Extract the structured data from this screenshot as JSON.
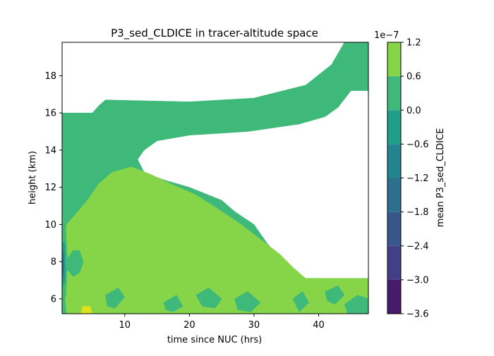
{
  "chart_data": {
    "type": "heatmap",
    "title": "P3_sed_CLDICE in tracer-altitude space",
    "xlabel": "time since NUC (hrs)",
    "ylabel": "height (km)",
    "xlim": [
      0.3,
      47.7
    ],
    "ylim": [
      5.2,
      19.8
    ],
    "xticks": [
      "10",
      "20",
      "30",
      "40"
    ],
    "yticks": [
      "6",
      "8",
      "10",
      "12",
      "14",
      "16",
      "18"
    ],
    "grid": false,
    "colorbar": {
      "label": "mean P3_sed_CLDICE",
      "offset_text": "1e−7",
      "levels": [
        -3.6,
        -3.0,
        -2.4,
        -1.8,
        -1.2,
        -0.6,
        0.0,
        0.6,
        1.2
      ],
      "tick_labels": [
        "−3.6",
        "−3.0",
        "−2.4",
        "−1.8",
        "−1.2",
        "−0.6",
        "0.0",
        "0.6",
        "1.2"
      ],
      "colors": [
        "#481a6c",
        "#433e85",
        "#38588c",
        "#2d708e",
        "#25858e",
        "#1f9e89",
        "#3eb97a",
        "#86d549",
        "#dde318"
      ]
    },
    "regions": [
      {
        "level": "-0.6 to 0.0",
        "color": "#3eb97a",
        "polygon": [
          [
            0.3,
            16
          ],
          [
            5,
            16
          ],
          [
            6,
            16.4
          ],
          [
            7,
            16.7
          ],
          [
            20,
            16.6
          ],
          [
            30,
            16.8
          ],
          [
            38,
            17.5
          ],
          [
            42,
            18.6
          ],
          [
            44,
            19.8
          ],
          [
            47.7,
            19.8
          ],
          [
            47.7,
            17.2
          ],
          [
            45,
            17.2
          ],
          [
            43,
            16.3
          ],
          [
            41,
            15.8
          ],
          [
            37,
            15.4
          ],
          [
            29,
            15
          ],
          [
            20,
            14.8
          ],
          [
            15,
            14.5
          ],
          [
            13,
            14
          ],
          [
            12,
            13.5
          ],
          [
            13,
            12.8
          ],
          [
            16,
            12.4
          ],
          [
            20,
            12
          ],
          [
            25,
            11.3
          ],
          [
            27,
            10.7
          ],
          [
            30,
            10
          ],
          [
            32,
            9
          ],
          [
            34,
            8.2
          ],
          [
            36,
            7.6
          ],
          [
            38,
            7.1
          ],
          [
            47.7,
            7.1
          ],
          [
            47.7,
            5.2
          ],
          [
            0.3,
            5.2
          ]
        ]
      },
      {
        "level": "0.0 to 0.6",
        "color": "#86d549",
        "polygon": [
          [
            1,
            10
          ],
          [
            2,
            10.4
          ],
          [
            4,
            11.2
          ],
          [
            6,
            12.2
          ],
          [
            8,
            12.8
          ],
          [
            11,
            13.1
          ],
          [
            14,
            12.7
          ],
          [
            17,
            12.2
          ],
          [
            21,
            11.6
          ],
          [
            25,
            10.7
          ],
          [
            28,
            10
          ],
          [
            31,
            9.2
          ],
          [
            34,
            8.4
          ],
          [
            36,
            7.7
          ],
          [
            38,
            7.1
          ],
          [
            47.7,
            7.1
          ],
          [
            47.7,
            5.2
          ],
          [
            1,
            5.2
          ],
          [
            0.8,
            6
          ],
          [
            1,
            7
          ],
          [
            0.6,
            8.5
          ]
        ]
      },
      {
        "level": "-0.6 to 0.0",
        "color": "#3eb97a",
        "polygon": [
          [
            1,
            7.6
          ],
          [
            2,
            7.2
          ],
          [
            3,
            7.4
          ],
          [
            3.6,
            8
          ],
          [
            3,
            8.6
          ],
          [
            2,
            8.6
          ],
          [
            1.2,
            8.2
          ]
        ]
      },
      {
        "level": "-0.6 to 0.0",
        "color": "#3eb97a",
        "polygon": [
          [
            7,
            6.2
          ],
          [
            9,
            6.6
          ],
          [
            10,
            6.1
          ],
          [
            8.5,
            5.5
          ],
          [
            7.3,
            5.6
          ]
        ]
      },
      {
        "level": "-0.6 to 0.0",
        "color": "#3eb97a",
        "polygon": [
          [
            21,
            6.2
          ],
          [
            23,
            6.6
          ],
          [
            25,
            6
          ],
          [
            24,
            5.5
          ],
          [
            22,
            5.6
          ]
        ]
      },
      {
        "level": "-0.6 to 0.0",
        "color": "#3eb97a",
        "polygon": [
          [
            27,
            6
          ],
          [
            29,
            6.4
          ],
          [
            31,
            5.8
          ],
          [
            29.5,
            5.3
          ],
          [
            27.5,
            5.4
          ]
        ]
      },
      {
        "level": "-0.6 to 0.0",
        "color": "#3eb97a",
        "polygon": [
          [
            16,
            5.8
          ],
          [
            18,
            6.2
          ],
          [
            19,
            5.6
          ],
          [
            17.5,
            5.3
          ],
          [
            16.4,
            5.4
          ]
        ]
      },
      {
        "level": "-0.6 to 0.0",
        "color": "#3eb97a",
        "polygon": [
          [
            36,
            6
          ],
          [
            37.5,
            6.4
          ],
          [
            38.5,
            5.8
          ],
          [
            37,
            5.3
          ]
        ]
      },
      {
        "level": "-0.6 to 0.0",
        "color": "#3eb97a",
        "polygon": [
          [
            44,
            5.7
          ],
          [
            46,
            6.2
          ],
          [
            47.7,
            6
          ],
          [
            47.7,
            5.2
          ],
          [
            44.5,
            5.2
          ]
        ]
      },
      {
        "level": "-0.6 to 0.0",
        "color": "#3eb97a",
        "polygon": [
          [
            41,
            6.4
          ],
          [
            43,
            6.7
          ],
          [
            44,
            6.2
          ],
          [
            42.5,
            5.7
          ],
          [
            41.3,
            5.9
          ]
        ]
      },
      {
        "level": "-0.6 to 0.0",
        "color": "#3eb97a",
        "polygon": [
          [
            0.3,
            9.8
          ],
          [
            0.9,
            9.6
          ],
          [
            1.1,
            8.2
          ],
          [
            0.9,
            6.2
          ],
          [
            0.3,
            6
          ]
        ]
      },
      {
        "level": "-1.2 to -0.6",
        "color": "#1f9e89",
        "polygon": [
          [
            0.3,
            9.1
          ],
          [
            0.7,
            9
          ],
          [
            0.8,
            7
          ],
          [
            0.3,
            6.6
          ]
        ]
      },
      {
        "level": "-1.8 to -1.2",
        "color": "#25858e",
        "polygon": [
          [
            0.3,
            8.8
          ],
          [
            0.6,
            8.5
          ],
          [
            0.6,
            7.2
          ],
          [
            0.3,
            7
          ]
        ]
      },
      {
        "level": "-2.4 to -1.8",
        "color": "#2d708e",
        "polygon": [
          [
            0.3,
            8.4
          ],
          [
            0.5,
            8.1
          ],
          [
            0.5,
            7.4
          ],
          [
            0.3,
            7.3
          ]
        ]
      },
      {
        "level": "0.6 to 1.2",
        "color": "#dde318",
        "polygon": [
          [
            3.2,
            5.2
          ],
          [
            3.5,
            5.6
          ],
          [
            4.6,
            5.6
          ],
          [
            5,
            5.2
          ]
        ]
      }
    ]
  }
}
